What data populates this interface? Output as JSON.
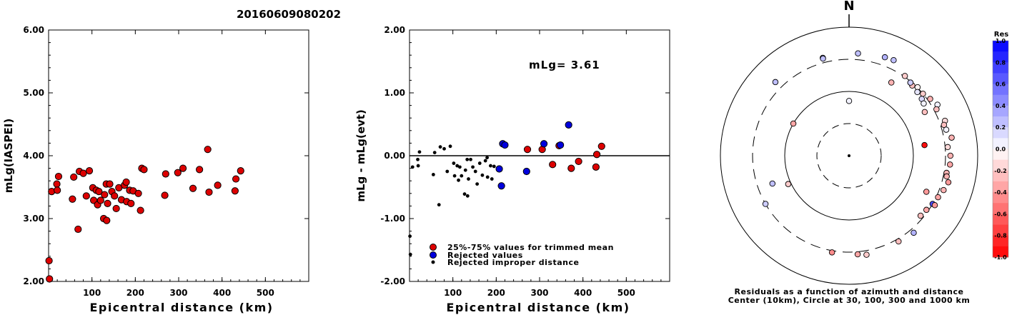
{
  "title": "20160609080202",
  "chart_data": [
    {
      "type": "scatter",
      "xlabel": "Epicentral distance (km)",
      "ylabel": "mLg(IASPEI)",
      "xlim": [
        0,
        600
      ],
      "ylim": [
        2.0,
        6.0
      ],
      "xticks": [
        "100",
        "200",
        "300",
        "400",
        "500"
      ],
      "yticks": [
        "2.00",
        "3.00",
        "4.00",
        "5.00",
        "6.00"
      ],
      "grid": false,
      "series": [
        {
          "color": "#dd0000",
          "points": [
            [
              1,
              2.33
            ],
            [
              2,
              2.04
            ],
            [
              7,
              3.43
            ],
            [
              19,
              3.55
            ],
            [
              20,
              3.45
            ],
            [
              23,
              3.67
            ],
            [
              55,
              3.31
            ],
            [
              58,
              3.66
            ],
            [
              68,
              2.83
            ],
            [
              71,
              3.75
            ],
            [
              80,
              3.72
            ],
            [
              87,
              3.36
            ],
            [
              94,
              3.76
            ],
            [
              102,
              3.49
            ],
            [
              104,
              3.29
            ],
            [
              110,
              3.45
            ],
            [
              113,
              3.22
            ],
            [
              116,
              3.43
            ],
            [
              120,
              3.29
            ],
            [
              127,
              3.0
            ],
            [
              129,
              3.38
            ],
            [
              133,
              3.55
            ],
            [
              134,
              2.97
            ],
            [
              136,
              3.24
            ],
            [
              141,
              3.55
            ],
            [
              146,
              3.43
            ],
            [
              152,
              3.36
            ],
            [
              156,
              3.16
            ],
            [
              162,
              3.49
            ],
            [
              168,
              3.3
            ],
            [
              175,
              3.53
            ],
            [
              179,
              3.58
            ],
            [
              180,
              3.27
            ],
            [
              187,
              3.45
            ],
            [
              190,
              3.24
            ],
            [
              195,
              3.44
            ],
            [
              207,
              3.4
            ],
            [
              212,
              3.13
            ],
            [
              215,
              3.8
            ],
            [
              220,
              3.78
            ],
            [
              268,
              3.37
            ],
            [
              270,
              3.71
            ],
            [
              298,
              3.73
            ],
            [
              310,
              3.8
            ],
            [
              333,
              3.48
            ],
            [
              348,
              3.78
            ],
            [
              367,
              4.1
            ],
            [
              370,
              3.42
            ],
            [
              390,
              3.53
            ],
            [
              430,
              3.44
            ],
            [
              432,
              3.63
            ],
            [
              443,
              3.76
            ]
          ]
        }
      ]
    },
    {
      "type": "scatter",
      "xlabel": "Epicentral distance (km)",
      "ylabel": "mLg - mLg(evt)",
      "xlim": [
        0,
        600
      ],
      "ylim": [
        -2.0,
        2.0
      ],
      "xticks": [
        "100",
        "200",
        "300",
        "400",
        "500"
      ],
      "yticks": [
        "-2.00",
        "-1.00",
        "0.00",
        "1.00",
        "2.00"
      ],
      "annotation": "mLg= 3.61",
      "grid": false,
      "legend": [
        {
          "label": "25%-75% values for trimmed mean",
          "color": "#dd0000"
        },
        {
          "label": "Rejected values",
          "color": "#0000dd"
        },
        {
          "label": "Rejected improper distance",
          "color": "#000000"
        }
      ],
      "series": [
        {
          "name": "25%-75% values for trimmed mean",
          "color": "#dd0000",
          "points": [
            [
              272,
              0.1
            ],
            [
              306,
              0.1
            ],
            [
              330,
              -0.14
            ],
            [
              345,
              0.16
            ],
            [
              373,
              -0.2
            ],
            [
              390,
              -0.09
            ],
            [
              430,
              -0.18
            ],
            [
              432,
              0.02
            ],
            [
              443,
              0.15
            ]
          ]
        },
        {
          "name": "Rejected values",
          "color": "#0000dd",
          "points": [
            [
              207,
              -0.21
            ],
            [
              212,
              -0.48
            ],
            [
              215,
              0.19
            ],
            [
              220,
              0.17
            ],
            [
              270,
              -0.25
            ],
            [
              310,
              0.19
            ],
            [
              348,
              0.17
            ],
            [
              367,
              0.49
            ]
          ]
        },
        {
          "name": "Rejected improper distance",
          "color": "#000000",
          "points": [
            [
              1,
              -1.28
            ],
            [
              2,
              -1.57
            ],
            [
              7,
              -0.18
            ],
            [
              19,
              -0.06
            ],
            [
              20,
              -0.16
            ],
            [
              23,
              0.06
            ],
            [
              55,
              -0.3
            ],
            [
              58,
              0.05
            ],
            [
              68,
              -0.78
            ],
            [
              71,
              0.14
            ],
            [
              80,
              0.11
            ],
            [
              87,
              -0.25
            ],
            [
              94,
              0.15
            ],
            [
              102,
              -0.12
            ],
            [
              104,
              -0.32
            ],
            [
              110,
              -0.16
            ],
            [
              113,
              -0.39
            ],
            [
              116,
              -0.18
            ],
            [
              120,
              -0.32
            ],
            [
              127,
              -0.61
            ],
            [
              129,
              -0.23
            ],
            [
              133,
              -0.06
            ],
            [
              134,
              -0.64
            ],
            [
              136,
              -0.37
            ],
            [
              141,
              -0.06
            ],
            [
              146,
              -0.18
            ],
            [
              152,
              -0.25
            ],
            [
              156,
              -0.45
            ],
            [
              162,
              -0.12
            ],
            [
              168,
              -0.31
            ],
            [
              175,
              -0.08
            ],
            [
              179,
              -0.03
            ],
            [
              180,
              -0.34
            ],
            [
              187,
              -0.16
            ],
            [
              190,
              -0.37
            ],
            [
              195,
              -0.17
            ]
          ]
        }
      ]
    },
    {
      "type": "scatter",
      "caption_line1": "Residuals as a function of azimuth and distance",
      "caption_line2": "Center (10km), Circle at 30, 100, 300 and 1000 km",
      "north_label": "N",
      "colorbar_title": "Res",
      "colorbar_ticks": [
        "1.0",
        "0.8",
        "0.6",
        "0.4",
        "0.2",
        "0.0",
        "-0.2",
        "-0.4",
        "-0.6",
        "-0.8",
        "-1.0"
      ],
      "rings_km": [
        10,
        30,
        100,
        300,
        1000
      ],
      "points_az_dist_res": [
        [
          345,
          360,
          0.25
        ],
        [
          345,
          350,
          0.25
        ],
        [
          20,
          410,
          0.3
        ],
        [
          25,
          420,
          0.25
        ],
        [
          30,
          200,
          -0.3
        ],
        [
          35,
          310,
          -0.2
        ],
        [
          40,
          290,
          -0.15
        ],
        [
          42,
          280,
          -0.25
        ],
        [
          45,
          305,
          -0.05
        ],
        [
          47,
          270,
          0.1
        ],
        [
          50,
          300,
          -0.2
        ],
        [
          52,
          260,
          0.15
        ],
        [
          55,
          250,
          0.05
        ],
        [
          60,
          220,
          -0.25
        ],
        [
          55,
          330,
          -0.3
        ],
        [
          60,
          370,
          0.05
        ],
        [
          62,
          330,
          -0.25
        ],
        [
          70,
          370,
          -0.15
        ],
        [
          72,
          340,
          -0.25
        ],
        [
          75,
          350,
          0.05
        ],
        [
          80,
          400,
          -0.3
        ],
        [
          82,
          150,
          -0.95
        ],
        [
          85,
          330,
          -0.15
        ],
        [
          90,
          360,
          -0.3
        ],
        [
          95,
          360,
          -0.35
        ],
        [
          100,
          330,
          -0.3
        ],
        [
          102,
          340,
          -0.3
        ],
        [
          105,
          380,
          -0.4
        ],
        [
          110,
          350,
          -0.3
        ],
        [
          115,
          320,
          -0.35
        ],
        [
          120,
          300,
          0.7
        ],
        [
          115,
          205,
          -0.4
        ],
        [
          120,
          330,
          -0.4
        ],
        [
          125,
          280,
          -0.35
        ],
        [
          130,
          270,
          -0.25
        ],
        [
          140,
          350,
          0.3
        ],
        [
          150,
          330,
          -0.25
        ],
        [
          170,
          350,
          -0.2
        ],
        [
          175,
          330,
          -0.35
        ],
        [
          190,
          320,
          -0.45
        ],
        [
          240,
          300,
          0.2
        ],
        [
          245,
          110,
          -0.2
        ],
        [
          315,
          400,
          0.25
        ],
        [
          5,
          380,
          0.25
        ],
        [
          0,
          70,
          0.05
        ],
        [
          250,
          180,
          0.25
        ],
        [
          300,
          100,
          -0.35
        ],
        [
          40,
          290,
          0.2
        ]
      ]
    }
  ]
}
